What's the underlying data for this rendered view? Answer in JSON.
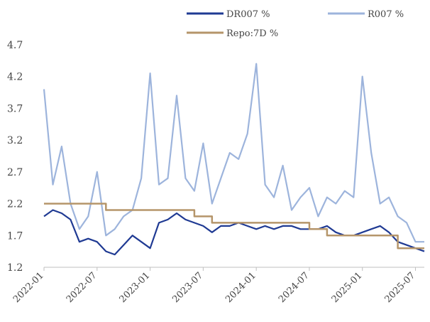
{
  "chart_data": {
    "type": "line",
    "title": "",
    "xlabel": "",
    "ylabel": "",
    "ylim": [
      1.2,
      4.9
    ],
    "yticks": [
      1.2,
      1.7,
      2.2,
      2.7,
      3.2,
      3.7,
      4.2,
      4.7
    ],
    "xticks": [
      "2022-01",
      "2022-07",
      "2023-01",
      "2023-07",
      "2024-01",
      "2024-07",
      "2025-01",
      "2025-07"
    ],
    "grid": false,
    "legend_position": "top",
    "series": [
      {
        "name": "DR007 %",
        "color": "#1f3a93",
        "x": [
          "2022-01",
          "2022-02",
          "2022-03",
          "2022-04",
          "2022-05",
          "2022-06",
          "2022-07",
          "2022-08",
          "2022-09",
          "2022-10",
          "2022-11",
          "2022-12",
          "2023-01",
          "2023-02",
          "2023-03",
          "2023-04",
          "2023-05",
          "2023-06",
          "2023-07",
          "2023-08",
          "2023-09",
          "2023-10",
          "2023-11",
          "2023-12",
          "2024-01",
          "2024-02",
          "2024-03",
          "2024-04",
          "2024-05",
          "2024-06",
          "2024-07",
          "2024-08",
          "2024-09",
          "2024-10",
          "2024-11",
          "2024-12",
          "2025-01",
          "2025-02",
          "2025-03",
          "2025-04",
          "2025-05",
          "2025-06",
          "2025-07",
          "2025-08"
        ],
        "y": [
          2.0,
          2.1,
          2.05,
          1.95,
          1.6,
          1.65,
          1.6,
          1.45,
          1.4,
          1.55,
          1.7,
          1.6,
          1.5,
          1.9,
          1.95,
          2.05,
          1.95,
          1.9,
          1.85,
          1.75,
          1.85,
          1.85,
          1.9,
          1.85,
          1.8,
          1.85,
          1.8,
          1.85,
          1.85,
          1.8,
          1.8,
          1.8,
          1.85,
          1.75,
          1.7,
          1.7,
          1.75,
          1.8,
          1.85,
          1.75,
          1.6,
          1.55,
          1.5,
          1.45
        ]
      },
      {
        "name": "R007 %",
        "color": "#9db4dc",
        "x": [
          "2022-01",
          "2022-02",
          "2022-03",
          "2022-04",
          "2022-05",
          "2022-06",
          "2022-07",
          "2022-08",
          "2022-09",
          "2022-10",
          "2022-11",
          "2022-12",
          "2023-01",
          "2023-02",
          "2023-03",
          "2023-04",
          "2023-05",
          "2023-06",
          "2023-07",
          "2023-08",
          "2023-09",
          "2023-10",
          "2023-11",
          "2023-12",
          "2024-01",
          "2024-02",
          "2024-03",
          "2024-04",
          "2024-05",
          "2024-06",
          "2024-07",
          "2024-08",
          "2024-09",
          "2024-10",
          "2024-11",
          "2024-12",
          "2025-01",
          "2025-02",
          "2025-03",
          "2025-04",
          "2025-05",
          "2025-06",
          "2025-07",
          "2025-08"
        ],
        "y": [
          4.0,
          2.5,
          3.1,
          2.2,
          1.8,
          2.0,
          2.7,
          1.7,
          1.8,
          2.0,
          2.1,
          2.6,
          4.25,
          2.5,
          2.6,
          3.9,
          2.6,
          2.4,
          3.15,
          2.2,
          2.6,
          3.0,
          2.9,
          3.3,
          4.4,
          2.5,
          2.3,
          2.8,
          2.1,
          2.3,
          2.45,
          2.0,
          2.3,
          2.2,
          2.4,
          2.3,
          4.2,
          3.0,
          2.2,
          2.3,
          2.0,
          1.9,
          1.6,
          1.6
        ]
      },
      {
        "name": "Repo:7D %",
        "color": "#b5956a",
        "x": [
          "2022-01",
          "2022-08",
          "2022-08",
          "2023-06",
          "2023-06",
          "2023-08",
          "2023-08",
          "2024-07",
          "2024-07",
          "2024-09",
          "2024-09",
          "2025-05",
          "2025-05",
          "2025-08"
        ],
        "y": [
          2.2,
          2.2,
          2.1,
          2.1,
          2.0,
          2.0,
          1.9,
          1.9,
          1.8,
          1.8,
          1.7,
          1.7,
          1.5,
          1.5
        ]
      }
    ]
  }
}
